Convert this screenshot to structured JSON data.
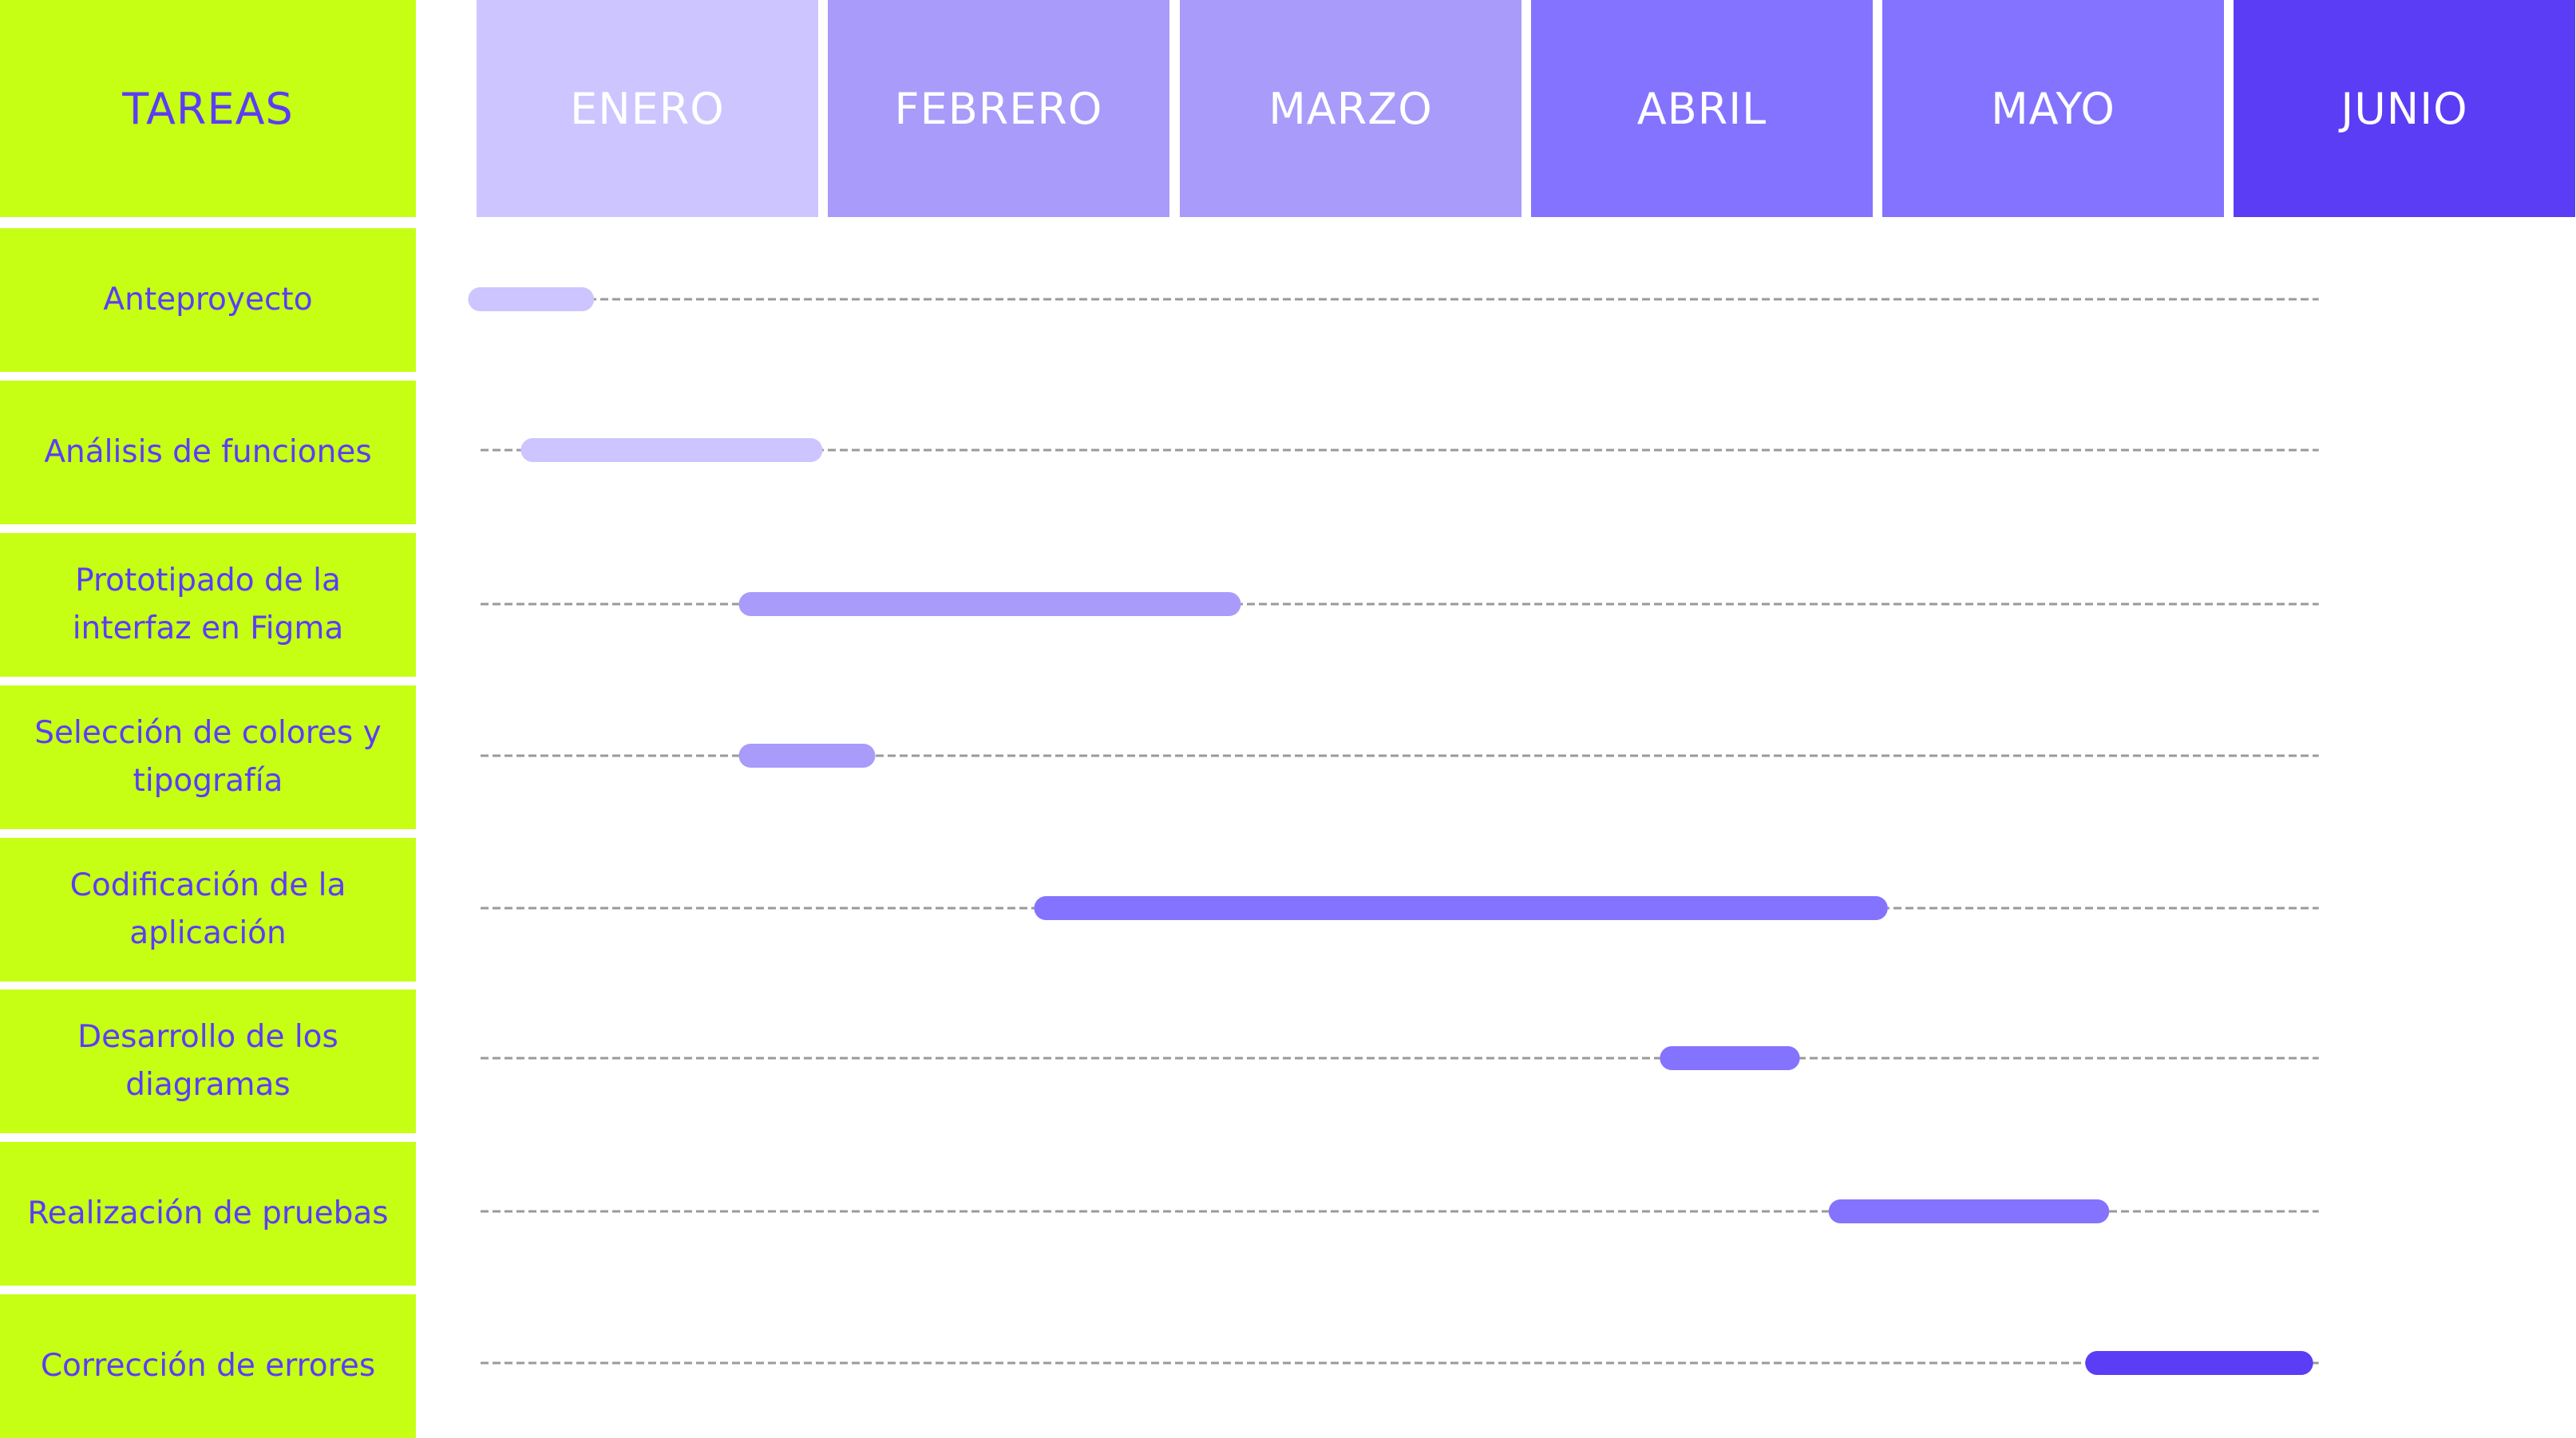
{
  "header": {
    "tasks_label": "TAREAS"
  },
  "colors": {
    "task_bg": "#c6ff14",
    "task_text": "#5b3df5",
    "dash": "#9a9a9a"
  },
  "months": [
    {
      "label": "ENERO",
      "color": "#cdc5ff"
    },
    {
      "label": "FEBRERO",
      "color": "#a89bfa"
    },
    {
      "label": "MARZO",
      "color": "#a89bfa"
    },
    {
      "label": "ABRIL",
      "color": "#8473ff"
    },
    {
      "label": "MAYO",
      "color": "#8473ff"
    },
    {
      "label": "JUNIO",
      "color": "#5b3df5"
    }
  ],
  "chart_data": {
    "type": "gantt",
    "x_unit": "months",
    "xlim": [
      0,
      6
    ],
    "categories": [
      "Anteproyecto",
      "Análisis de funciones",
      "Prototipado de la interfaz en Figma",
      "Selección de colores y tipografía",
      "Codificación de la aplicación",
      "Desarrollo de los diagramas",
      "Realización de pruebas",
      "Corrección de errores"
    ],
    "tasks": [
      {
        "name": "Anteproyecto",
        "start": 0.01,
        "end": 0.3,
        "color": "#cdc5ff"
      },
      {
        "name": "Análisis de funciones",
        "start": 0.16,
        "end": 0.95,
        "color": "#cdc5ff"
      },
      {
        "name": "Prototipado de la interfaz en Figma",
        "start": 0.78,
        "end": 2.14,
        "color": "#a89bfa"
      },
      {
        "name": "Selección de colores y tipografía",
        "start": 0.78,
        "end": 1.1,
        "color": "#a89bfa"
      },
      {
        "name": "Codificación de la aplicación",
        "start": 1.62,
        "end": 3.98,
        "color": "#8473ff"
      },
      {
        "name": "Desarrollo de los diagramas",
        "start": 3.4,
        "end": 3.73,
        "color": "#8473ff"
      },
      {
        "name": "Realización de pruebas",
        "start": 3.88,
        "end": 4.61,
        "color": "#8473ff"
      },
      {
        "name": "Corrección de errores",
        "start": 4.61,
        "end": 5.19,
        "color": "#5b3df5"
      }
    ],
    "guide_end": 5.24
  }
}
